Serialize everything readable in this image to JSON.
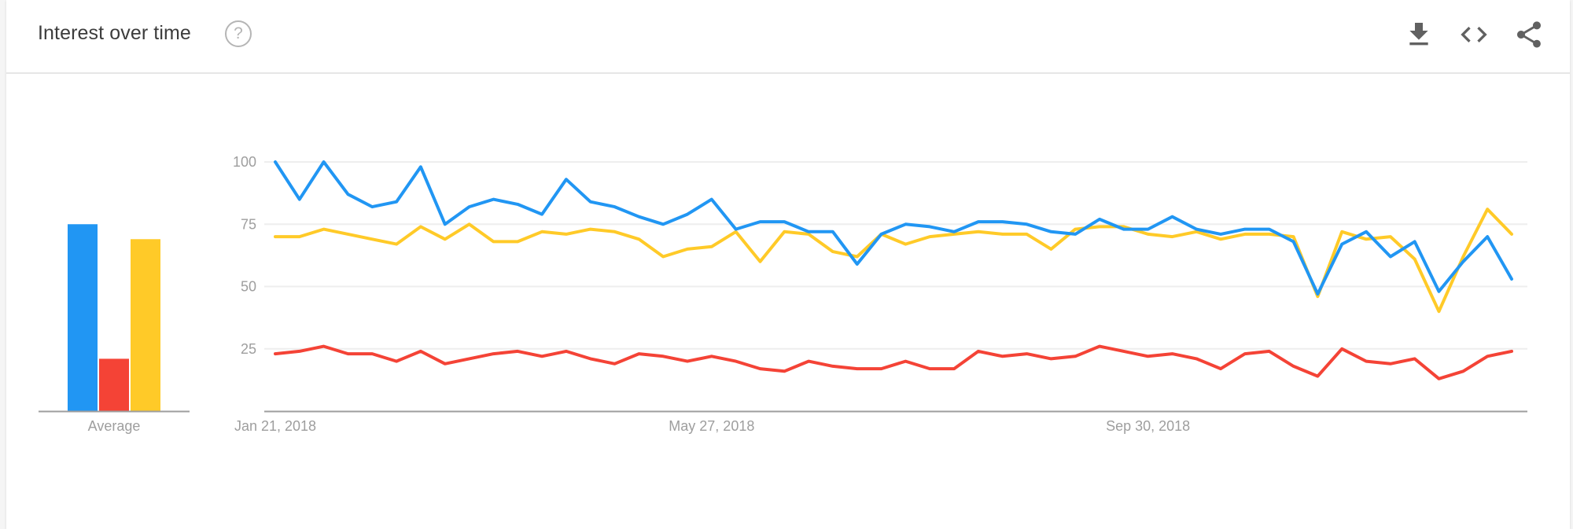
{
  "header": {
    "title": "Interest over time",
    "help_icon": "help-circle-icon",
    "actions": [
      "download-icon",
      "embed-code-icon",
      "share-icon"
    ]
  },
  "colors": {
    "series": [
      "#2196f3",
      "#f44336",
      "#ffca28"
    ],
    "axis": "#9e9e9e",
    "grid": "#eeeeee",
    "tick_text": "#9e9e9e"
  },
  "chart_data": [
    {
      "type": "bar",
      "categories": [
        "Average"
      ],
      "series": [
        {
          "values": [
            75
          ]
        },
        {
          "values": [
            21
          ]
        },
        {
          "values": [
            69
          ]
        }
      ],
      "xlabel": "Average",
      "ylim": [
        0,
        100
      ]
    },
    {
      "type": "line",
      "x_start": "Jan 21, 2018",
      "x_interval": "weekly",
      "x_tick_labels": [
        "Jan 21, 2018",
        "May 27, 2018",
        "Sep 30, 2018"
      ],
      "y_ticks": [
        25,
        50,
        75,
        100
      ],
      "ylim": [
        0,
        100
      ],
      "grid": true,
      "series": [
        {
          "values": [
            100,
            85,
            100,
            87,
            82,
            84,
            98,
            75,
            82,
            85,
            83,
            79,
            93,
            84,
            82,
            78,
            75,
            79,
            85,
            73,
            76,
            76,
            72,
            72,
            59,
            71,
            75,
            74,
            72,
            76,
            76,
            75,
            72,
            71,
            77,
            73,
            73,
            78,
            73,
            71,
            73,
            73,
            68,
            47,
            67,
            72,
            62,
            68,
            48,
            60,
            70,
            53
          ]
        },
        {
          "values": [
            23,
            24,
            26,
            23,
            23,
            20,
            24,
            19,
            21,
            23,
            24,
            22,
            24,
            21,
            19,
            23,
            22,
            20,
            22,
            20,
            17,
            16,
            20,
            18,
            17,
            17,
            20,
            17,
            17,
            24,
            22,
            23,
            21,
            22,
            26,
            24,
            22,
            23,
            21,
            17,
            23,
            24,
            18,
            14,
            25,
            20,
            19,
            21,
            13,
            16,
            22,
            24
          ]
        },
        {
          "values": [
            70,
            70,
            73,
            71,
            69,
            67,
            74,
            69,
            75,
            68,
            68,
            72,
            71,
            73,
            72,
            69,
            62,
            65,
            66,
            72,
            60,
            72,
            71,
            64,
            62,
            71,
            67,
            70,
            71,
            72,
            71,
            71,
            65,
            73,
            74,
            74,
            71,
            70,
            72,
            69,
            71,
            71,
            70,
            46,
            72,
            69,
            70,
            61,
            40,
            62,
            81,
            71
          ]
        }
      ]
    }
  ]
}
